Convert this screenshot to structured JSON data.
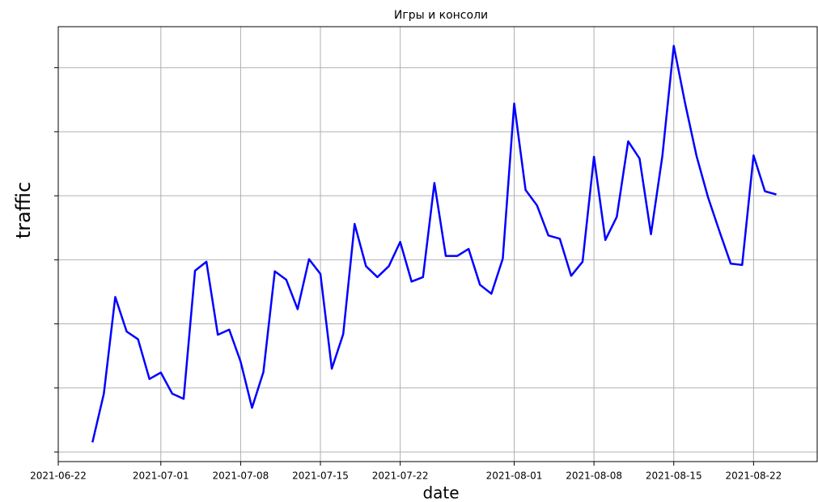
{
  "chart_data": {
    "type": "line",
    "title": "Игры и консоли",
    "x_label": "date",
    "y_label": "traffic",
    "x": [
      "2021-06-25",
      "2021-06-26",
      "2021-06-27",
      "2021-06-28",
      "2021-06-29",
      "2021-06-30",
      "2021-07-01",
      "2021-07-02",
      "2021-07-03",
      "2021-07-04",
      "2021-07-05",
      "2021-07-06",
      "2021-07-07",
      "2021-07-08",
      "2021-07-09",
      "2021-07-10",
      "2021-07-11",
      "2021-07-12",
      "2021-07-13",
      "2021-07-14",
      "2021-07-15",
      "2021-07-16",
      "2021-07-17",
      "2021-07-18",
      "2021-07-19",
      "2021-07-20",
      "2021-07-21",
      "2021-07-22",
      "2021-07-23",
      "2021-07-24",
      "2021-07-25",
      "2021-07-26",
      "2021-07-27",
      "2021-07-28",
      "2021-07-29",
      "2021-07-30",
      "2021-07-31",
      "2021-08-01",
      "2021-08-02",
      "2021-08-03",
      "2021-08-04",
      "2021-08-05",
      "2021-08-06",
      "2021-08-07",
      "2021-08-08",
      "2021-08-09",
      "2021-08-10",
      "2021-08-11",
      "2021-08-12",
      "2021-08-13",
      "2021-08-14",
      "2021-08-15",
      "2021-08-16",
      "2021-08-17",
      "2021-08-18",
      "2021-08-19",
      "2021-08-20",
      "2021-08-21",
      "2021-08-22",
      "2021-08-23",
      "2021-08-24"
    ],
    "series": [
      {
        "color": "#0000ff",
        "values": [
          0.15,
          0.91,
          2.42,
          1.88,
          1.76,
          1.14,
          1.24,
          0.91,
          0.83,
          2.83,
          2.97,
          1.83,
          1.91,
          1.41,
          0.69,
          1.25,
          2.82,
          2.69,
          2.23,
          3.01,
          2.78,
          1.3,
          1.84,
          3.56,
          2.9,
          2.73,
          2.9,
          3.28,
          2.66,
          2.73,
          4.2,
          3.06,
          3.06,
          3.17,
          2.61,
          2.47,
          3.02,
          5.44,
          4.09,
          3.85,
          3.38,
          3.33,
          2.75,
          2.97,
          4.61,
          3.31,
          3.67,
          4.85,
          4.58,
          3.4,
          4.62,
          6.34,
          5.44,
          4.62,
          3.98,
          3.45,
          2.94,
          2.92,
          4.63,
          4.07,
          4.02
        ]
      }
    ],
    "xlim": [
      "2021-06-22",
      "2021-08-27T14:00"
    ],
    "xticks": [
      "2021-06-22",
      "2021-07-01",
      "2021-07-08",
      "2021-07-15",
      "2021-07-22",
      "2021-08-01",
      "2021-08-08",
      "2021-08-15",
      "2021-08-22"
    ],
    "ylim": [
      -0.15,
      6.64
    ],
    "yticks": [
      {
        "value": 0,
        "label": null
      },
      {
        "value": 1,
        "label": null
      },
      {
        "value": 2,
        "label": null
      },
      {
        "value": 3,
        "label": null
      },
      {
        "value": 4,
        "label": null
      },
      {
        "value": 5,
        "label": null
      },
      {
        "value": 6,
        "label": null
      }
    ],
    "grid": true
  }
}
